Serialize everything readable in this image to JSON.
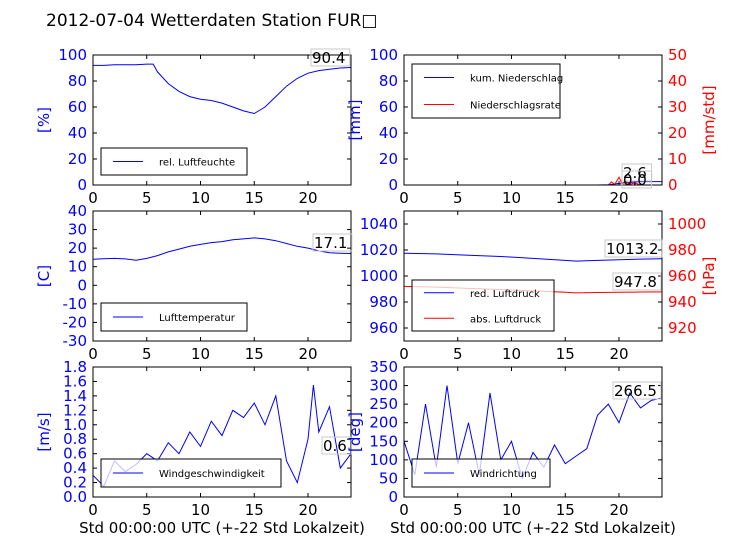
{
  "figure": {
    "title": "2012-07-04 Wetterdaten Station FUR□",
    "xlabel": "Std 00:00:00 UTC (+-22 Std Lokalzeit)"
  },
  "colors": {
    "blue": "#0000ff",
    "red": "#ff0000",
    "black": "#000000"
  },
  "chart_data": [
    {
      "type": "line",
      "panel": "humidity",
      "title": "",
      "xlabel": "",
      "ylabel": "[%]",
      "xlim": [
        0,
        24
      ],
      "ylim": [
        0,
        100
      ],
      "xticks": [
        0,
        5,
        10,
        15,
        20
      ],
      "yticks": [
        0,
        20,
        40,
        60,
        80,
        100
      ],
      "legend_position": "lower-left",
      "series": [
        {
          "name": "rel. Luftfeuchte",
          "color": "#0000ff",
          "axis": "left",
          "x": [
            0,
            1,
            2,
            3,
            4,
            5,
            5.6,
            6,
            7,
            8,
            9,
            10,
            11,
            12,
            13,
            14,
            15,
            16,
            17,
            18,
            19,
            20,
            21,
            22,
            23,
            24
          ],
          "y": [
            92,
            92,
            92.5,
            92.5,
            92.5,
            93,
            93,
            87,
            78,
            72,
            68,
            66,
            65,
            63,
            60,
            57,
            55,
            60,
            68,
            76,
            82,
            86,
            88,
            89,
            90,
            90.4
          ]
        }
      ],
      "annotations": [
        "90.4"
      ]
    },
    {
      "type": "line",
      "panel": "precipitation",
      "title": "",
      "xlabel": "",
      "ylabel": "[mm]",
      "ylabel_right": "[mm/std]",
      "xlim": [
        0,
        24
      ],
      "ylim": [
        0,
        100
      ],
      "ylim_right": [
        0,
        50
      ],
      "xticks": [
        0,
        5,
        10,
        15,
        20
      ],
      "yticks": [
        0,
        20,
        40,
        60,
        80,
        100
      ],
      "yticks_right": [
        0,
        10,
        20,
        30,
        40,
        50
      ],
      "legend_position": "upper-left",
      "series": [
        {
          "name": "kum. Niederschlag",
          "color": "#0000ff",
          "axis": "left",
          "x": [
            0,
            18,
            19,
            20,
            21,
            22,
            24
          ],
          "y": [
            0,
            0,
            0.2,
            1.2,
            2.0,
            2.6,
            2.6
          ]
        },
        {
          "name": "Niederschlagsrate",
          "color": "#ff0000",
          "axis": "right",
          "x": [
            0,
            19,
            19.3,
            19.6,
            20,
            20.3,
            20.6,
            21,
            21.5,
            22,
            24
          ],
          "y": [
            0,
            0,
            1.2,
            0.2,
            3.0,
            0.5,
            1.5,
            0.3,
            0.8,
            0,
            0
          ]
        }
      ],
      "annotations": [
        "2.6",
        "0.0"
      ]
    },
    {
      "type": "line",
      "panel": "temperature",
      "title": "",
      "xlabel": "",
      "ylabel": "[C]",
      "xlim": [
        0,
        24
      ],
      "ylim": [
        -30,
        40
      ],
      "xticks": [
        0,
        5,
        10,
        15,
        20
      ],
      "yticks": [
        -30,
        -20,
        -10,
        0,
        10,
        20,
        30,
        40
      ],
      "legend_position": "lower-left",
      "series": [
        {
          "name": "Lufttemperatur",
          "color": "#0000ff",
          "axis": "left",
          "x": [
            0,
            1,
            2,
            3,
            4,
            5,
            6,
            7,
            8,
            9,
            10,
            11,
            12,
            13,
            14,
            15,
            16,
            17,
            18,
            19,
            20,
            21,
            22,
            23,
            24
          ],
          "y": [
            14,
            14.3,
            14.5,
            14.2,
            13.5,
            14.5,
            16,
            18,
            19.5,
            21,
            22,
            23,
            23.5,
            24.5,
            25,
            25.5,
            25,
            24,
            22.5,
            21,
            20,
            18.5,
            17.5,
            17.3,
            17.1
          ]
        }
      ],
      "annotations": [
        "17.1"
      ]
    },
    {
      "type": "line",
      "panel": "pressure",
      "title": "",
      "xlabel": "",
      "ylabel": "",
      "ylabel_right": "[hPa]",
      "xlim": [
        0,
        24
      ],
      "ylim": [
        950,
        1050
      ],
      "ylim_right": [
        910,
        1010
      ],
      "xticks": [
        0,
        5,
        10,
        15,
        20
      ],
      "yticks": [
        960,
        980,
        1000,
        1020,
        1040
      ],
      "yticks_right": [
        920,
        940,
        960,
        980,
        1000
      ],
      "legend_position": "lower-left",
      "series": [
        {
          "name": "red. Luftdruck",
          "color": "#0000ff",
          "axis": "left",
          "x": [
            0,
            3,
            6,
            9,
            12,
            15,
            16,
            18,
            20,
            22,
            24
          ],
          "y": [
            1017.5,
            1017,
            1016,
            1015,
            1013.5,
            1012,
            1011.5,
            1012,
            1012.5,
            1013,
            1013.2
          ]
        },
        {
          "name": "abs. Luftdruck",
          "color": "#ff0000",
          "axis": "right",
          "x": [
            0,
            3,
            6,
            9,
            12,
            15,
            16,
            18,
            20,
            22,
            24
          ],
          "y": [
            952,
            951.5,
            950.5,
            949.5,
            948.5,
            947.5,
            947,
            947.3,
            947.5,
            947.7,
            947.8
          ]
        }
      ],
      "annotations": [
        "1013.2",
        "947.8"
      ]
    },
    {
      "type": "line",
      "panel": "wind-speed",
      "title": "",
      "xlabel": "Std 00:00:00 UTC (+-22 Std Lokalzeit)",
      "ylabel": "[m/s]",
      "xlim": [
        0,
        24
      ],
      "ylim": [
        0,
        1.8
      ],
      "xticks": [
        0,
        5,
        10,
        15,
        20
      ],
      "yticks": [
        0.0,
        0.2,
        0.4,
        0.6,
        0.8,
        1.0,
        1.2,
        1.4,
        1.6,
        1.8
      ],
      "legend_position": "lower-left",
      "series": [
        {
          "name": "Windgeschwindigkeit",
          "color": "#0000ff",
          "axis": "left",
          "x": [
            0,
            1,
            2,
            3,
            4,
            5,
            6,
            7,
            8,
            9,
            10,
            11,
            12,
            13,
            14,
            15,
            16,
            17,
            18,
            19,
            20,
            20.5,
            21,
            22,
            23,
            24
          ],
          "y": [
            0.3,
            0.15,
            0.5,
            0.35,
            0.45,
            0.6,
            0.5,
            0.75,
            0.6,
            0.9,
            0.7,
            1.05,
            0.85,
            1.2,
            1.1,
            1.3,
            1.0,
            1.4,
            0.5,
            0.2,
            0.8,
            1.55,
            0.9,
            1.25,
            0.4,
            0.6
          ]
        }
      ],
      "annotations": [
        "0.6"
      ]
    },
    {
      "type": "line",
      "panel": "wind-direction",
      "title": "",
      "xlabel": "Std 00:00:00 UTC (+-22 Std Lokalzeit)",
      "ylabel": "[deg]",
      "xlim": [
        0,
        24
      ],
      "ylim": [
        0,
        350
      ],
      "xticks": [
        0,
        5,
        10,
        15,
        20
      ],
      "yticks": [
        0,
        50,
        100,
        150,
        200,
        250,
        300,
        350
      ],
      "legend_position": "lower-left",
      "series": [
        {
          "name": "Windrichtung",
          "color": "#0000ff",
          "axis": "left",
          "x": [
            0,
            1,
            2,
            3,
            4,
            5,
            6,
            7,
            8,
            9,
            10,
            11,
            12,
            13,
            14,
            15,
            16,
            17,
            18,
            19,
            20,
            21,
            22,
            23,
            24
          ],
          "y": [
            150,
            60,
            250,
            80,
            300,
            90,
            200,
            60,
            280,
            100,
            150,
            50,
            120,
            80,
            140,
            90,
            110,
            130,
            220,
            250,
            200,
            280,
            240,
            260,
            266.5
          ]
        }
      ],
      "annotations": [
        "266.5"
      ]
    }
  ]
}
